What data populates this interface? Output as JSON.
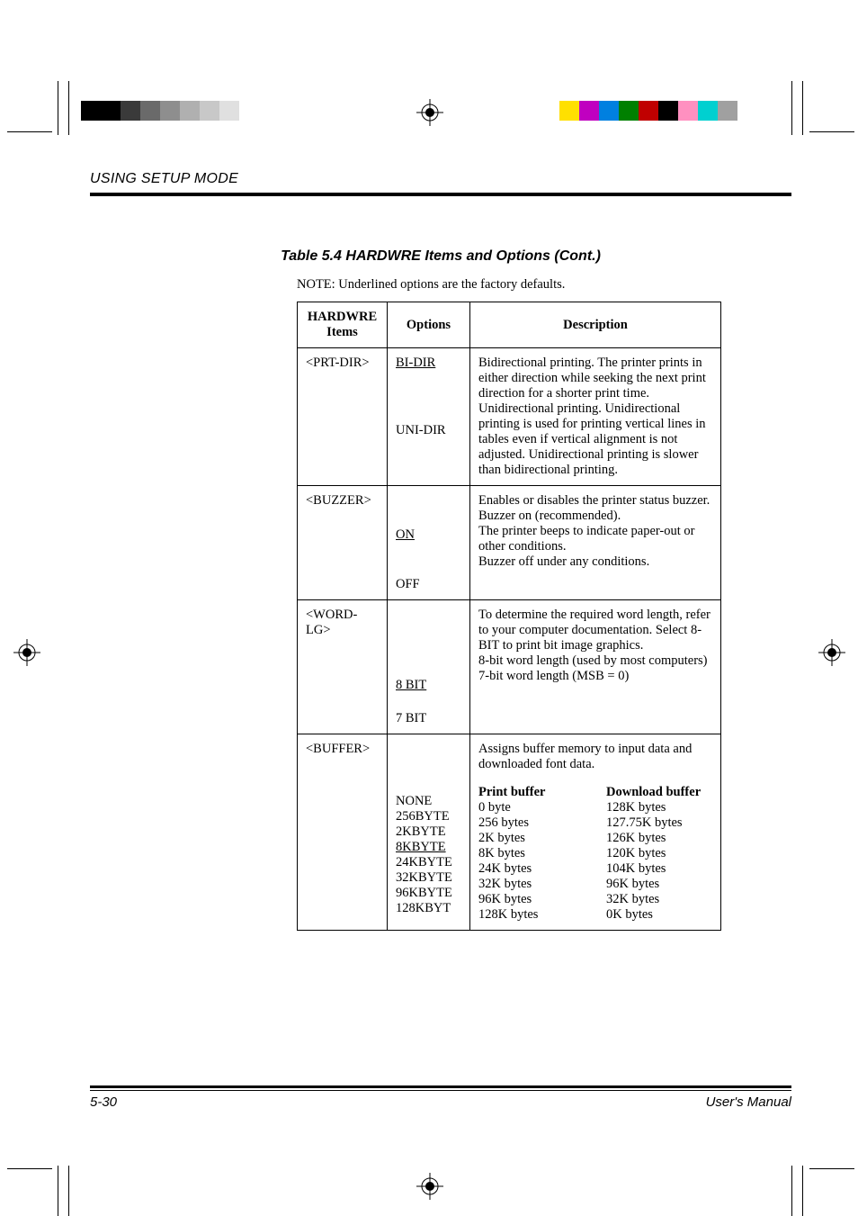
{
  "section_header": "USING SETUP MODE",
  "table_title": "Table 5.4  HARDWRE Items and Options (Cont.)",
  "note": "NOTE:  Underlined options are the factory defaults.",
  "headers": {
    "items": "HARDWRE Items",
    "options": "Options",
    "description": "Description"
  },
  "rows": {
    "prtdir": {
      "item": "<PRT-DIR>",
      "opt1": "BI-DIR",
      "opt2": "UNI-DIR",
      "desc1": "Bidirectional printing.  The printer prints in either direction while seeking the next print direction for a shorter print time.",
      "desc2": "Unidirectional printing. Unidirectional printing is used for printing vertical lines in tables even if vertical alignment is not adjusted. Unidirectional printing is slower than bidirectional printing."
    },
    "buzzer": {
      "item": "<BUZZER>",
      "desc0": "Enables or disables the printer status buzzer.",
      "opt1": "ON",
      "desc1": "Buzzer on (recommended).",
      "desc1b": "The printer beeps to indicate paper-out or other conditions.",
      "opt2": "OFF",
      "desc2": "Buzzer off under any conditions."
    },
    "wordlg": {
      "item": "<WORD-LG>",
      "desc0": "To determine the required word length, refer to your computer documentation.  Select 8-BIT to print bit image graphics.",
      "opt1": "8 BIT",
      "desc1": "8-bit word length (used by most computers)",
      "opt2": "7 BIT",
      "desc2": "7-bit word length (MSB = 0)"
    },
    "buffer": {
      "item": "<BUFFER>",
      "desc0": "Assigns buffer memory to input data and downloaded font data.",
      "h1": "Print buffer",
      "h2": "Download buffer",
      "opts": [
        "NONE",
        "256BYTE",
        "2KBYTE",
        "8KBYTE",
        "24KBYTE",
        "32KBYTE",
        "96KBYTE",
        "128KBYT"
      ],
      "col1": [
        "0 byte",
        "256 bytes",
        "2K bytes",
        "8K bytes",
        "24K bytes",
        "32K bytes",
        "96K bytes",
        "128K bytes"
      ],
      "col2": [
        "128K bytes",
        "127.75K bytes",
        "126K bytes",
        "120K bytes",
        "104K bytes",
        "96K bytes",
        "32K bytes",
        "0K bytes"
      ],
      "default_index": 3
    }
  },
  "footer": {
    "left": "5-30",
    "right": "User's Manual"
  },
  "colorbars": {
    "left_top": [
      "#000000",
      "#000000",
      "#3a3a3a",
      "#6a6a6a",
      "#8e8e8e",
      "#b0b0b0",
      "#c8c8c8",
      "#e0e0e0"
    ],
    "right_top": [
      "#ffe000",
      "#c000c0",
      "#0080e0",
      "#008000",
      "#c00000",
      "#000000",
      "#ff90c0",
      "#00d0d0",
      "#a0a0a0"
    ]
  }
}
